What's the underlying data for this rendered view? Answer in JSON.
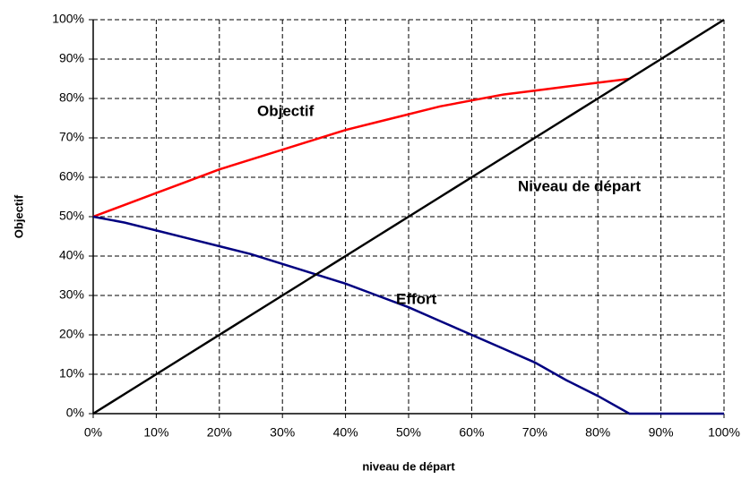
{
  "chart_data": {
    "type": "line",
    "x_label": "niveau de départ",
    "y_label": "Objectif",
    "x": [
      0,
      5,
      10,
      15,
      20,
      25,
      30,
      35,
      40,
      45,
      50,
      55,
      60,
      65,
      70,
      75,
      80,
      85,
      90,
      95,
      100
    ],
    "series": [
      {
        "name": "Objectif",
        "color": "#ff0000",
        "values": [
          50,
          53,
          56,
          59,
          62,
          64.5,
          67,
          69.5,
          72,
          74,
          76,
          78,
          79.5,
          81,
          82,
          83,
          84,
          85,
          null,
          null,
          null
        ]
      },
      {
        "name": "Effort",
        "color": "#000080",
        "values": [
          50,
          48.5,
          46.5,
          44.5,
          42.5,
          40.5,
          38,
          35.5,
          33,
          30,
          27,
          23.5,
          20,
          16.5,
          13,
          8.5,
          4.5,
          0,
          0,
          0,
          0
        ]
      },
      {
        "name": "Niveau de départ",
        "color": "#000000",
        "values": [
          0,
          5,
          10,
          15,
          20,
          25,
          30,
          35,
          40,
          45,
          50,
          55,
          60,
          65,
          70,
          75,
          80,
          85,
          90,
          95,
          100
        ]
      }
    ],
    "xlim": [
      0,
      100
    ],
    "ylim": [
      0,
      100
    ],
    "xticks": [
      {
        "value": 0,
        "label": "0%"
      },
      {
        "value": 10,
        "label": "10%"
      },
      {
        "value": 20,
        "label": "20%"
      },
      {
        "value": 30,
        "label": "30%"
      },
      {
        "value": 40,
        "label": "40%"
      },
      {
        "value": 50,
        "label": "50%"
      },
      {
        "value": 60,
        "label": "60%"
      },
      {
        "value": 70,
        "label": "70%"
      },
      {
        "value": 80,
        "label": "80%"
      },
      {
        "value": 90,
        "label": "90%"
      },
      {
        "value": 100,
        "label": "100%"
      }
    ],
    "yticks": [
      {
        "value": 0,
        "label": "0%"
      },
      {
        "value": 10,
        "label": "10%"
      },
      {
        "value": 20,
        "label": "20%"
      },
      {
        "value": 30,
        "label": "30%"
      },
      {
        "value": 40,
        "label": "40%"
      },
      {
        "value": 50,
        "label": "50%"
      },
      {
        "value": 60,
        "label": "60%"
      },
      {
        "value": 70,
        "label": "70%"
      },
      {
        "value": 80,
        "label": "80%"
      },
      {
        "value": 90,
        "label": "90%"
      },
      {
        "value": 100,
        "label": "100%"
      }
    ],
    "grid": true
  }
}
